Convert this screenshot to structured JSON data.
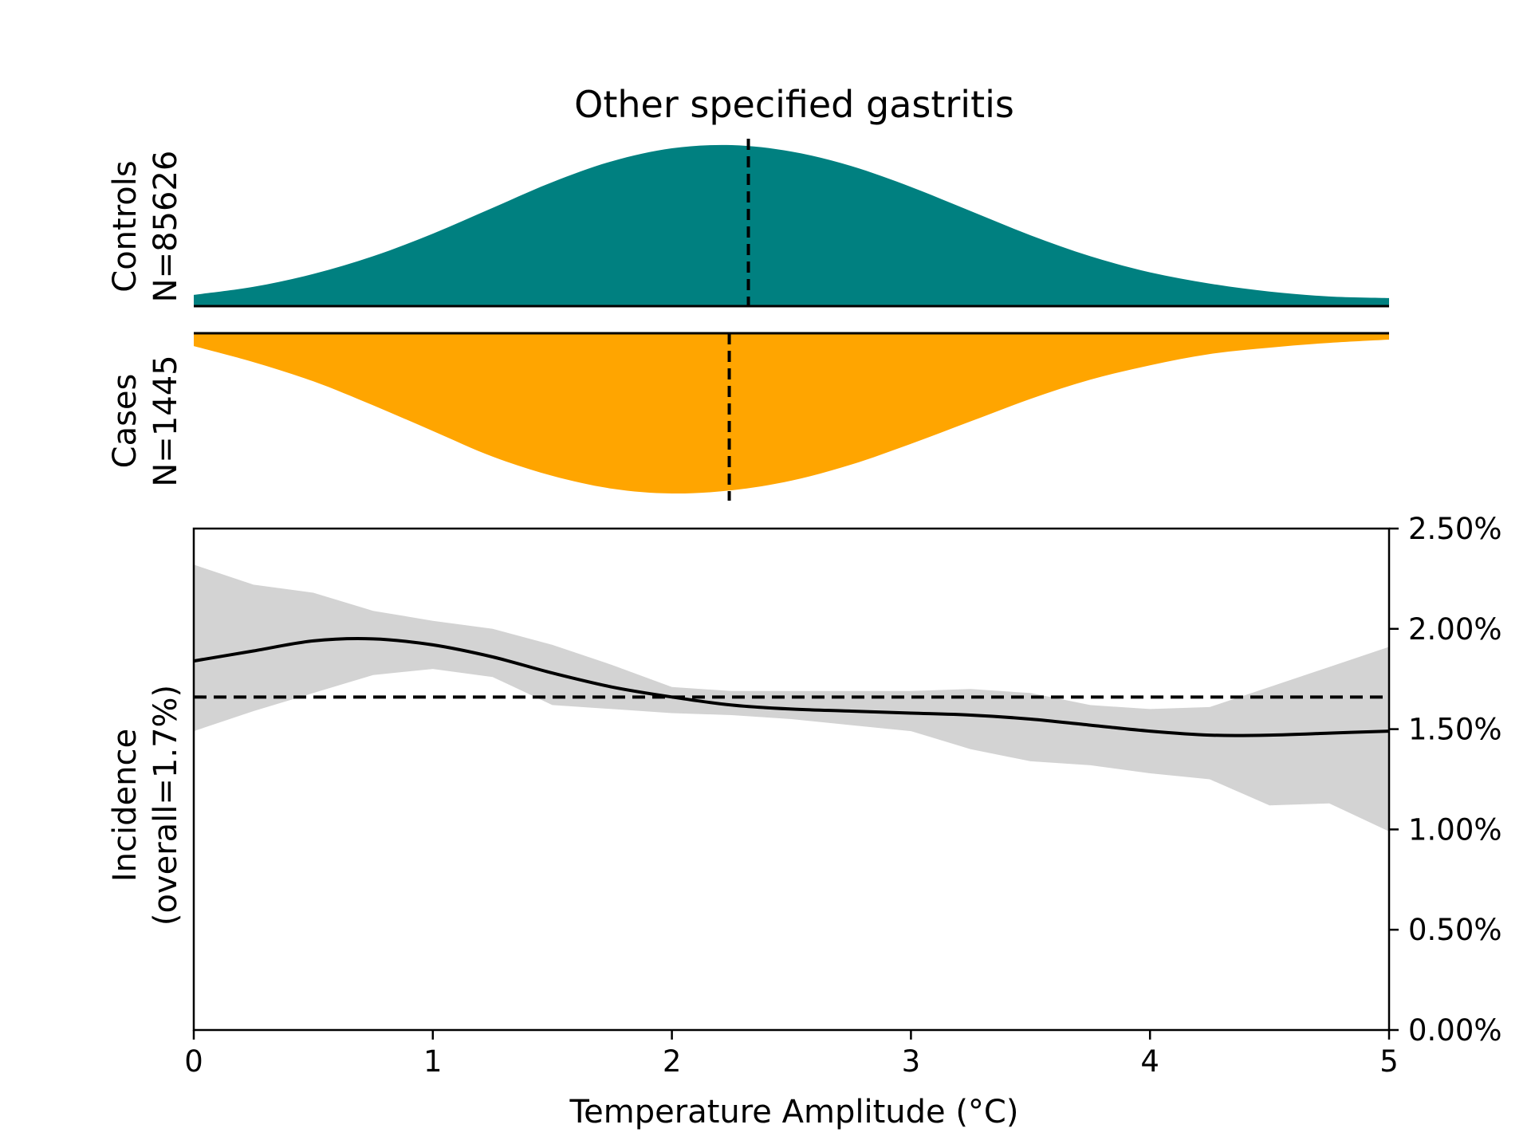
{
  "chart_data": {
    "type": "area",
    "title": "Other specified gastritis",
    "colors": {
      "controls": "#008080",
      "cases": "#FFA500",
      "ci_band": "#D3D3D3",
      "line": "#000000"
    },
    "distributions": {
      "x_range": [
        0,
        5
      ],
      "controls": {
        "label_line1": "Controls",
        "label_line2": "N=85626",
        "median": 2.32,
        "x": [
          0,
          0.25,
          0.5,
          0.75,
          1.0,
          1.25,
          1.5,
          1.75,
          2.0,
          2.25,
          2.5,
          2.75,
          3.0,
          3.25,
          3.5,
          3.75,
          4.0,
          4.25,
          4.5,
          4.75,
          5.0
        ],
        "density": [
          0.07,
          0.12,
          0.2,
          0.31,
          0.45,
          0.61,
          0.77,
          0.9,
          0.98,
          1.0,
          0.96,
          0.87,
          0.74,
          0.59,
          0.44,
          0.31,
          0.21,
          0.14,
          0.09,
          0.06,
          0.05
        ]
      },
      "cases": {
        "label_line1": "Cases",
        "label_line2": "N=1445",
        "median": 2.24,
        "x": [
          0,
          0.25,
          0.5,
          0.75,
          1.0,
          1.25,
          1.5,
          1.75,
          2.0,
          2.25,
          2.5,
          2.75,
          3.0,
          3.25,
          3.5,
          3.75,
          4.0,
          4.25,
          4.5,
          4.75,
          5.0
        ],
        "density": [
          0.08,
          0.18,
          0.3,
          0.45,
          0.61,
          0.77,
          0.89,
          0.97,
          1.0,
          0.98,
          0.92,
          0.82,
          0.69,
          0.55,
          0.41,
          0.29,
          0.2,
          0.13,
          0.09,
          0.06,
          0.04
        ]
      }
    },
    "incidence": {
      "xlabel": "Temperature Amplitude (°C)",
      "ylabel_line1": "Incidence",
      "ylabel_line2": "(overall=1.7%)",
      "xlim": [
        0,
        5
      ],
      "ylim": [
        0,
        2.5
      ],
      "overall": 1.66,
      "x_ticks": [
        0,
        1,
        2,
        3,
        4,
        5
      ],
      "x_tick_labels": [
        "0",
        "1",
        "2",
        "3",
        "4",
        "5"
      ],
      "y_ticks": [
        0,
        0.5,
        1.0,
        1.5,
        2.0,
        2.5
      ],
      "y_tick_labels": [
        "0.00%",
        "0.50%",
        "1.00%",
        "1.50%",
        "2.00%",
        "2.50%"
      ],
      "y_axis_side": "right",
      "x": [
        0,
        0.25,
        0.5,
        0.75,
        1.0,
        1.25,
        1.5,
        1.75,
        2.0,
        2.25,
        2.5,
        2.75,
        3.0,
        3.25,
        3.5,
        3.75,
        4.0,
        4.25,
        4.5,
        4.75,
        5.0
      ],
      "mean": [
        1.84,
        1.89,
        1.94,
        1.95,
        1.92,
        1.86,
        1.78,
        1.71,
        1.66,
        1.62,
        1.6,
        1.59,
        1.58,
        1.57,
        1.55,
        1.52,
        1.49,
        1.47,
        1.47,
        1.48,
        1.49
      ],
      "lower": [
        1.49,
        1.59,
        1.68,
        1.77,
        1.8,
        1.76,
        1.62,
        1.6,
        1.58,
        1.57,
        1.55,
        1.52,
        1.49,
        1.4,
        1.34,
        1.32,
        1.28,
        1.25,
        1.12,
        1.13,
        0.99
      ],
      "upper": [
        2.32,
        2.22,
        2.18,
        2.09,
        2.04,
        2.0,
        1.92,
        1.82,
        1.71,
        1.69,
        1.69,
        1.69,
        1.69,
        1.7,
        1.68,
        1.62,
        1.6,
        1.61,
        1.71,
        1.81,
        1.91
      ]
    }
  }
}
